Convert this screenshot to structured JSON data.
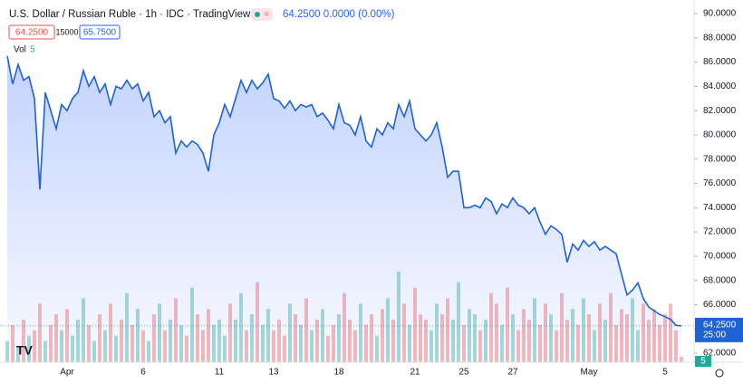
{
  "header": {
    "symbol": "U.S. Dollar / Russian Ruble · 1h · IDC · TradingView",
    "quote": "64.2500 0.0000 (0.00%)",
    "bid": "64.2500",
    "spread": "15000",
    "ask": "65.7500",
    "vol_label": "Vol",
    "vol_value": "5"
  },
  "price_label": "64.2500",
  "countdown": "25:00",
  "volume_label": "5",
  "chart_data": {
    "type": "area",
    "categories": [
      null,
      null,
      null,
      null,
      null,
      null,
      null,
      null,
      null,
      null,
      null,
      "Apr",
      null,
      null,
      null,
      null,
      null,
      null,
      null,
      null,
      null,
      null,
      null,
      null,
      null,
      "6",
      null,
      null,
      null,
      null,
      null,
      null,
      null,
      null,
      null,
      null,
      null,
      null,
      null,
      "11",
      null,
      null,
      null,
      null,
      null,
      null,
      null,
      null,
      null,
      "13",
      null,
      null,
      null,
      null,
      null,
      null,
      null,
      null,
      null,
      null,
      null,
      "18",
      null,
      null,
      null,
      null,
      null,
      null,
      null,
      null,
      null,
      null,
      null,
      null,
      null,
      "21",
      null,
      null,
      null,
      null,
      null,
      null,
      null,
      null,
      "25",
      null,
      null,
      null,
      null,
      null,
      null,
      null,
      null,
      "27",
      null,
      null,
      null,
      null,
      null,
      null,
      null,
      null,
      null,
      null,
      null,
      null,
      null,
      "May",
      null,
      null,
      null,
      null,
      null,
      null,
      null,
      null,
      null,
      null,
      null,
      null,
      null,
      "5",
      null,
      null,
      null
    ],
    "series": [
      {
        "name": "USDRUB",
        "color": "#1e63d6",
        "values": [
          86.5,
          84.2,
          85.8,
          84.5,
          84.8,
          83.0,
          75.5,
          83.5,
          82.0,
          80.5,
          82.5,
          82.0,
          83.0,
          83.5,
          85.3,
          84.0,
          84.8,
          83.5,
          84.2,
          82.5,
          84.0,
          83.8,
          84.5,
          83.8,
          84.2,
          82.8,
          83.5,
          81.5,
          82.0,
          81.0,
          81.5,
          78.5,
          79.5,
          79.0,
          79.5,
          79.2,
          78.5,
          77.0,
          80.0,
          81.0,
          82.5,
          81.5,
          83.0,
          84.5,
          83.5,
          84.5,
          83.8,
          84.3,
          85.0,
          83.0,
          82.8,
          82.2,
          82.8,
          82.0,
          82.5,
          82.3,
          82.5,
          81.5,
          81.8,
          81.2,
          80.5,
          82.5,
          81.0,
          80.8,
          80.0,
          81.5,
          79.5,
          79.0,
          80.5,
          80.0,
          81.0,
          80.5,
          82.5,
          81.5,
          82.8,
          80.5,
          80.0,
          79.5,
          80.0,
          81.0,
          79.0,
          76.5,
          77.0,
          77.0,
          74.0,
          74.0,
          74.2,
          74.0,
          74.8,
          74.5,
          73.5,
          74.3,
          74.0,
          74.8,
          74.2,
          74.0,
          73.5,
          74.0,
          72.8,
          71.8,
          72.5,
          72.2,
          71.8,
          69.5,
          71.0,
          70.5,
          71.3,
          70.8,
          71.2,
          70.5,
          70.8,
          70.5,
          70.2,
          68.5,
          66.8,
          67.2,
          67.8,
          66.5,
          65.8,
          65.5,
          65.2,
          65.0,
          64.8,
          64.3,
          64.25
        ]
      }
    ],
    "volume": {
      "up_color": "#26a69a",
      "down_color": "#ef5350",
      "values": [
        20,
        35,
        15,
        40,
        25,
        30,
        55,
        20,
        35,
        45,
        30,
        50,
        25,
        40,
        60,
        35,
        20,
        45,
        30,
        55,
        25,
        40,
        65,
        35,
        50,
        30,
        20,
        45,
        55,
        30,
        40,
        60,
        35,
        25,
        70,
        45,
        30,
        50,
        35,
        40,
        25,
        55,
        40,
        65,
        30,
        45,
        75,
        35,
        50,
        30,
        40,
        25,
        55,
        45,
        35,
        60,
        30,
        40,
        50,
        25,
        35,
        45,
        65,
        40,
        30,
        55,
        35,
        45,
        25,
        50,
        60,
        40,
        85,
        55,
        35,
        70,
        45,
        40,
        30,
        55,
        45,
        60,
        40,
        75,
        35,
        50,
        45,
        30,
        40,
        65,
        55,
        35,
        70,
        45,
        30,
        50,
        40,
        60,
        35,
        55,
        45,
        30,
        65,
        40,
        50,
        35,
        60,
        45,
        30,
        55,
        40,
        65,
        35,
        50,
        45,
        60,
        30,
        55,
        40,
        50,
        35,
        45,
        55,
        30,
        5
      ]
    },
    "ylim": [
      62,
      90
    ],
    "yticks": [
      {
        "value": 62,
        "label": "62.0000"
      },
      {
        "value": 64,
        "label": "64.0000"
      },
      {
        "value": 66,
        "label": "66.0000"
      },
      {
        "value": 68,
        "label": "68.0000"
      },
      {
        "value": 70,
        "label": "70.0000"
      },
      {
        "value": 72,
        "label": "72.0000"
      },
      {
        "value": 74,
        "label": "74.0000"
      },
      {
        "value": 76,
        "label": "76.0000"
      },
      {
        "value": 78,
        "label": "78.0000"
      },
      {
        "value": 80,
        "label": "80.0000"
      },
      {
        "value": 82,
        "label": "82.0000"
      },
      {
        "value": 84,
        "label": "84.0000"
      },
      {
        "value": 86,
        "label": "86.0000"
      },
      {
        "value": 88,
        "label": "88.0000"
      },
      {
        "value": 90,
        "label": "90.0000"
      }
    ],
    "grid": false
  }
}
